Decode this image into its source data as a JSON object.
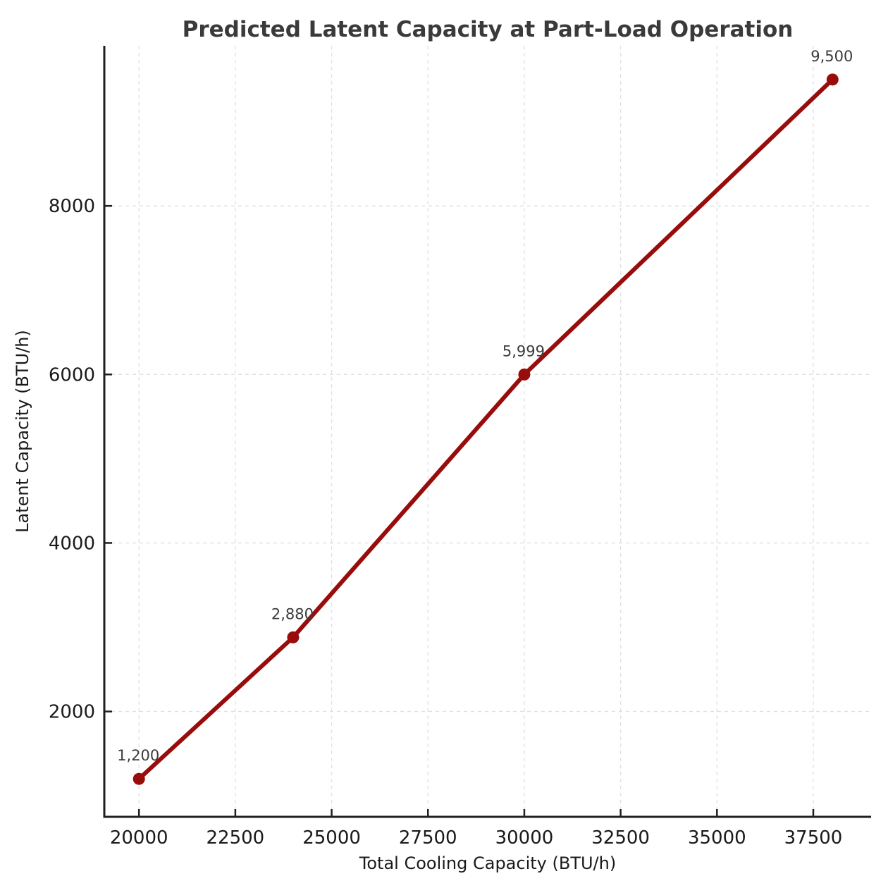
{
  "chart_data": {
    "type": "line",
    "title": "Predicted Latent Capacity at Part-Load Operation",
    "xlabel": "Total Cooling Capacity (BTU/h)",
    "ylabel": "Latent Capacity (BTU/h)",
    "series": [
      {
        "name": "Predicted Latent Capacity",
        "x": [
          20000,
          24000,
          30000,
          38000
        ],
        "y": [
          1200,
          2880,
          5999,
          9500
        ],
        "point_labels": [
          "1,200",
          "2,880",
          "5,999",
          "9,500"
        ]
      }
    ],
    "x_ticks": [
      20000,
      22500,
      25000,
      27500,
      30000,
      32500,
      35000,
      37500
    ],
    "x_tick_labels": [
      "20000",
      "22500",
      "25000",
      "27500",
      "30000",
      "32500",
      "35000",
      "37500"
    ],
    "y_ticks": [
      2000,
      4000,
      6000,
      8000
    ],
    "y_tick_labels": [
      "2000",
      "4000",
      "6000",
      "8000"
    ],
    "xlim": [
      19100,
      39000
    ],
    "ylim": [
      750,
      9900
    ],
    "grid": true,
    "grid_style": "dashed",
    "legend": "none",
    "marker": "circle",
    "colors": {
      "line": "#990c0c",
      "marker": "#990c0c",
      "grid": "#e0e0e0",
      "spine": "#1f1f1f",
      "tick_label": "#1a1a1a",
      "axis_label": "#1a1a1a",
      "title": "#3a3a3a",
      "point_label": "#3c3c3c",
      "background": "#ffffff"
    }
  }
}
